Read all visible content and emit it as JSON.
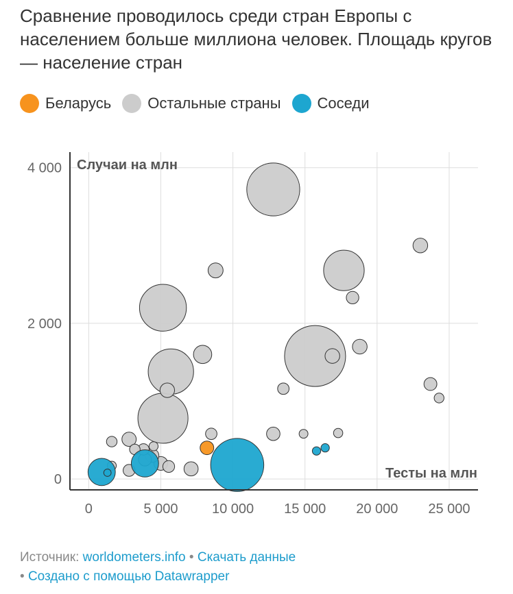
{
  "title": "Сравнение проводилось среди стран Европы с населением больше миллиона человек. Площадь кругов — население стран",
  "legend": [
    {
      "label": "Беларусь",
      "color": "#f7931e"
    },
    {
      "label": "Остальные страны",
      "color": "#cccccc"
    },
    {
      "label": "Соседи",
      "color": "#1da6d0"
    }
  ],
  "footer": {
    "source_prefix": "Источник:",
    "source_link": "worldometers.info",
    "download_link": "Скачать данные",
    "created_link": "Создано с помощью Datawrapper",
    "separator": "•"
  },
  "chart_data": {
    "type": "scatter",
    "xlabel": "Тесты на млн",
    "ylabel": "Случаи на млн",
    "xlim": [
      -1300,
      27000
    ],
    "ylim": [
      -140,
      4200
    ],
    "x_ticks": [
      0,
      5000,
      10000,
      15000,
      20000,
      25000
    ],
    "x_tick_labels": [
      "0",
      "5 000",
      "10 000",
      "15 000",
      "20 000",
      "25 000"
    ],
    "y_ticks": [
      0,
      2000,
      4000
    ],
    "y_tick_labels": [
      "0",
      "2 000",
      "4 000"
    ],
    "grid": true,
    "bubble_size": "population",
    "series": [
      {
        "name": "Беларусь",
        "color": "#f7931e",
        "points": [
          {
            "x": 8200,
            "y": 400,
            "size": 9.5
          }
        ]
      },
      {
        "name": "Остальные страны",
        "color": "#cccccc",
        "points": [
          {
            "x": 12800,
            "y": 3720,
            "size": 143
          },
          {
            "x": 23000,
            "y": 3000,
            "size": 11
          },
          {
            "x": 8800,
            "y": 2680,
            "size": 11.5
          },
          {
            "x": 17700,
            "y": 2680,
            "size": 84
          },
          {
            "x": 18300,
            "y": 2330,
            "size": 8
          },
          {
            "x": 5150,
            "y": 2200,
            "size": 112
          },
          {
            "x": 18800,
            "y": 1700,
            "size": 11
          },
          {
            "x": 7900,
            "y": 1600,
            "size": 17
          },
          {
            "x": 15700,
            "y": 1580,
            "size": 190
          },
          {
            "x": 16900,
            "y": 1580,
            "size": 11
          },
          {
            "x": 5700,
            "y": 1380,
            "size": 105
          },
          {
            "x": 23700,
            "y": 1220,
            "size": 8.5
          },
          {
            "x": 5450,
            "y": 1140,
            "size": 10.8
          },
          {
            "x": 13500,
            "y": 1160,
            "size": 6.7
          },
          {
            "x": 24300,
            "y": 1040,
            "size": 4.9
          },
          {
            "x": 5150,
            "y": 780,
            "size": 128
          },
          {
            "x": 8500,
            "y": 580,
            "size": 6.7
          },
          {
            "x": 12800,
            "y": 580,
            "size": 9.2
          },
          {
            "x": 14900,
            "y": 580,
            "size": 4.0
          },
          {
            "x": 17300,
            "y": 590,
            "size": 4.4
          },
          {
            "x": 1600,
            "y": 480,
            "size": 5.7
          },
          {
            "x": 2800,
            "y": 510,
            "size": 10.4
          },
          {
            "x": 3200,
            "y": 380,
            "size": 5.7
          },
          {
            "x": 4500,
            "y": 420,
            "size": 4.2
          },
          {
            "x": 3800,
            "y": 380,
            "size": 6.6
          },
          {
            "x": 4400,
            "y": 300,
            "size": 9.3
          },
          {
            "x": 5000,
            "y": 200,
            "size": 9.7
          },
          {
            "x": 3900,
            "y": 250,
            "size": 8.6
          },
          {
            "x": 1600,
            "y": 170,
            "size": 4.2
          },
          {
            "x": 2800,
            "y": 110,
            "size": 7.2
          },
          {
            "x": 5550,
            "y": 160,
            "size": 7.1
          },
          {
            "x": 7100,
            "y": 130,
            "size": 10.2
          }
        ]
      },
      {
        "name": "Соседи",
        "color": "#1da6d0",
        "points": [
          {
            "x": 10300,
            "y": 180,
            "size": 144
          },
          {
            "x": 900,
            "y": 90,
            "size": 38
          },
          {
            "x": 3900,
            "y": 200,
            "size": 38
          },
          {
            "x": 16400,
            "y": 400,
            "size": 3.6
          },
          {
            "x": 15800,
            "y": 360,
            "size": 3.6
          },
          {
            "x": 1300,
            "y": 80,
            "size": 2.8
          }
        ]
      }
    ]
  }
}
